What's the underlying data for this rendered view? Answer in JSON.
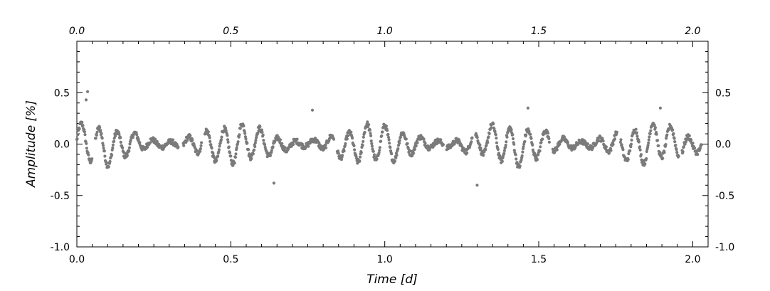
{
  "chart_data": {
    "type": "scatter",
    "xlabel": "Time [d]",
    "ylabel": "Amplitude [%]",
    "xlim": [
      0.0,
      2.05
    ],
    "ylim": [
      -1.0,
      1.0
    ],
    "x_ticks": [
      "0.0",
      "0.5",
      "1.0",
      "1.5",
      "2.0"
    ],
    "x_tick_values": [
      0.0,
      0.5,
      1.0,
      1.5,
      2.0
    ],
    "y_ticks": [
      "0.5",
      "0.0",
      "-0.5",
      "-1.0"
    ],
    "y_tick_values": [
      0.5,
      0.0,
      -0.5,
      -1.0
    ],
    "marker_color": "#7a7a7a",
    "series": [
      {
        "x_start": 0.0,
        "x_end": 2.03,
        "sampling_interval": 0.0014,
        "gaps": [
          [
            0.05,
            0.06
          ],
          [
            0.33,
            0.345
          ],
          [
            0.405,
            0.415
          ],
          [
            0.835,
            0.845
          ],
          [
            1.19,
            1.2
          ],
          [
            1.285,
            1.295
          ],
          [
            1.535,
            1.545
          ],
          [
            1.755,
            1.765
          ],
          [
            1.955,
            1.965
          ]
        ],
        "waves": [
          [
            0.55,
            0.0,
            0.058
          ],
          [
            0.1,
            1.3,
            0.19
          ],
          [
            0.04,
            2.1,
            0.27
          ]
        ],
        "envelope": {
          "mean": 0.19,
          "swing": 0.14,
          "period": 0.45,
          "phase": 0.7
        },
        "offset": 0.0,
        "scatter": 0.025,
        "points": [
          [
            0.035,
            0.51
          ],
          [
            0.03,
            0.43
          ],
          [
            0.64,
            -0.38
          ],
          [
            1.3,
            -0.4
          ],
          [
            1.465,
            0.35
          ],
          [
            1.895,
            0.35
          ],
          [
            0.765,
            0.33
          ]
        ]
      }
    ]
  }
}
